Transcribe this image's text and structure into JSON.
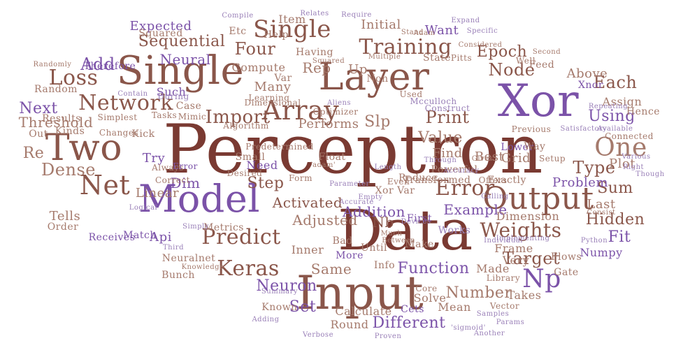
{
  "colors": {
    "maroon": "#7a3a32",
    "brown": "#8a564a",
    "rose": "#a57a6c",
    "purple": "#7b52a8",
    "lavender": "#9a80b8",
    "background": "#ffffff"
  },
  "words": [
    {
      "text": "Perceptron",
      "color": "maroon"
    },
    {
      "text": "Data",
      "color": "maroon"
    },
    {
      "text": "Input",
      "color": "brown"
    },
    {
      "text": "Single",
      "color": "brown"
    },
    {
      "text": "Layer",
      "color": "brown"
    },
    {
      "text": "Xor",
      "color": "purple"
    },
    {
      "text": "Model",
      "color": "purple"
    },
    {
      "text": "Output",
      "color": "brown"
    },
    {
      "text": "Two",
      "color": "brown"
    },
    {
      "text": "One",
      "color": "rose"
    },
    {
      "text": "Array",
      "color": "brown"
    },
    {
      "text": "Network",
      "color": "brown"
    },
    {
      "text": "Net",
      "color": "brown"
    },
    {
      "text": "Error",
      "color": "brown"
    },
    {
      "text": "Weights",
      "color": "brown"
    },
    {
      "text": "Predict",
      "color": "brown"
    },
    {
      "text": "Keras",
      "color": "brown"
    },
    {
      "text": "Np",
      "color": "purple"
    },
    {
      "text": "Single",
      "color": "brown"
    },
    {
      "text": "Training",
      "color": "brown"
    },
    {
      "text": "Loss",
      "color": "brown"
    },
    {
      "text": "Node",
      "color": "brown"
    },
    {
      "text": "Neuron",
      "color": "purple"
    },
    {
      "text": "Function",
      "color": "purple"
    },
    {
      "text": "Target",
      "color": "brown"
    },
    {
      "text": "Import",
      "color": "brown"
    },
    {
      "text": "Dense",
      "color": "rose"
    },
    {
      "text": "Print",
      "color": "brown"
    },
    {
      "text": "Value",
      "color": "rose"
    },
    {
      "text": "Slp",
      "color": "rose"
    },
    {
      "text": "Epoch",
      "color": "brown"
    },
    {
      "text": "Four",
      "color": "brown"
    },
    {
      "text": "Sequential",
      "color": "brown"
    },
    {
      "text": "Neural",
      "color": "purple"
    },
    {
      "text": "Add",
      "color": "purple"
    },
    {
      "text": "Each",
      "color": "brown"
    },
    {
      "text": "Using",
      "color": "purple"
    },
    {
      "text": "Type",
      "color": "brown"
    },
    {
      "text": "Sum",
      "color": "brown"
    },
    {
      "text": "Hidden",
      "color": "brown"
    },
    {
      "text": "Fit",
      "color": "purple"
    },
    {
      "text": "Api",
      "color": "purple"
    },
    {
      "text": "Set",
      "color": "purple"
    },
    {
      "text": "Different",
      "color": "purple"
    },
    {
      "text": "Number",
      "color": "rose"
    },
    {
      "text": "Activated",
      "color": "brown"
    },
    {
      "text": "Adjusted",
      "color": "rose"
    },
    {
      "text": "Example",
      "color": "purple"
    },
    {
      "text": "Problem",
      "color": "purple"
    },
    {
      "text": "Dimension",
      "color": "rose"
    },
    {
      "text": "Step",
      "color": "brown"
    },
    {
      "text": "Dim",
      "color": "purple"
    },
    {
      "text": "Linear",
      "color": "rose"
    },
    {
      "text": "Try",
      "color": "purple"
    },
    {
      "text": "Find",
      "color": "rose"
    },
    {
      "text": "Best",
      "color": "rose"
    },
    {
      "text": "Grid",
      "color": "rose"
    },
    {
      "text": "Plot",
      "color": "rose"
    },
    {
      "text": "Last",
      "color": "rose"
    },
    {
      "text": "Next",
      "color": "purple"
    },
    {
      "text": "Threshold",
      "color": "rose"
    },
    {
      "text": "Re",
      "color": "rose"
    },
    {
      "text": "Tells",
      "color": "rose"
    },
    {
      "text": "Expected",
      "color": "purple"
    },
    {
      "text": "Squared",
      "color": "rose"
    },
    {
      "text": "Initial",
      "color": "rose"
    },
    {
      "text": "Want",
      "color": "purple"
    },
    {
      "text": "Rep",
      "color": "rose"
    },
    {
      "text": "Up",
      "color": "rose"
    },
    {
      "text": "Many",
      "color": "rose"
    },
    {
      "text": "Performs",
      "color": "rose"
    },
    {
      "text": "Xnor",
      "color": "purple"
    },
    {
      "text": "Above",
      "color": "rose"
    },
    {
      "text": "Assign",
      "color": "rose"
    },
    {
      "text": "Hence",
      "color": "rose"
    },
    {
      "text": "Same",
      "color": "rose"
    },
    {
      "text": "Round",
      "color": "rose"
    },
    {
      "text": "Calculate",
      "color": "rose"
    },
    {
      "text": "Mean",
      "color": "rose"
    },
    {
      "text": "Solve",
      "color": "rose"
    },
    {
      "text": "Made",
      "color": "rose"
    },
    {
      "text": "Takes",
      "color": "rose"
    },
    {
      "text": "Numpy",
      "color": "purple"
    },
    {
      "text": "Frame",
      "color": "rose"
    },
    {
      "text": "Inner",
      "color": "rose"
    },
    {
      "text": "Nb",
      "color": "brown"
    },
    {
      "text": "Addition",
      "color": "purple"
    },
    {
      "text": "Item",
      "color": "rose"
    },
    {
      "text": "Compute",
      "color": "rose"
    },
    {
      "text": "Such",
      "color": "purple"
    },
    {
      "text": "Case",
      "color": "rose"
    },
    {
      "text": "Float",
      "color": "rose"
    },
    {
      "text": "Var",
      "color": "rose"
    },
    {
      "text": "Non",
      "color": "rose"
    },
    {
      "text": "Small",
      "color": "rose"
    },
    {
      "text": "Need",
      "color": "purple"
    },
    {
      "text": "Kick",
      "color": "rose"
    },
    {
      "text": "Metrics",
      "color": "rose"
    },
    {
      "text": "Neuralnet",
      "color": "rose"
    },
    {
      "text": "Known",
      "color": "rose"
    },
    {
      "text": "Bunch",
      "color": "rose"
    },
    {
      "text": "Match",
      "color": "purple"
    },
    {
      "text": "Receives",
      "color": "purple"
    },
    {
      "text": "Order",
      "color": "rose"
    },
    {
      "text": "Random",
      "color": "rose"
    },
    {
      "text": "Results",
      "color": "rose"
    },
    {
      "text": "Out",
      "color": "rose"
    },
    {
      "text": "Kinds",
      "color": "rose"
    },
    {
      "text": "Therefore",
      "color": "purple"
    },
    {
      "text": "Etc",
      "color": "rose"
    },
    {
      "text": "Help",
      "color": "rose"
    },
    {
      "text": "Having",
      "color": "rose"
    },
    {
      "text": "Relates",
      "color": "lavender"
    },
    {
      "text": "Stand",
      "color": "rose"
    },
    {
      "text": "Adam",
      "color": "rose"
    },
    {
      "text": "Second",
      "color": "rose"
    },
    {
      "text": "Feed",
      "color": "rose"
    },
    {
      "text": "Well",
      "color": "rose"
    },
    {
      "text": "State",
      "color": "rose"
    },
    {
      "text": "Pitts",
      "color": "rose"
    },
    {
      "text": "Multiple",
      "color": "rose"
    },
    {
      "text": "Considered",
      "color": "rose"
    },
    {
      "text": "Expand",
      "color": "lavender"
    },
    {
      "text": "Specific",
      "color": "lavender"
    },
    {
      "text": "Compile",
      "color": "lavender"
    },
    {
      "text": "Connected",
      "color": "rose"
    },
    {
      "text": "Previous",
      "color": "rose"
    },
    {
      "text": "Satisfactory",
      "color": "lavender"
    },
    {
      "text": "Exactly",
      "color": "rose"
    },
    {
      "text": "Lower",
      "color": "purple"
    },
    {
      "text": "Way",
      "color": "rose"
    },
    {
      "text": "Setup",
      "color": "rose"
    },
    {
      "text": "Offers",
      "color": "rose"
    },
    {
      "text": "Core",
      "color": "rose"
    },
    {
      "text": "Library",
      "color": "rose"
    },
    {
      "text": "Gate",
      "color": "rose"
    },
    {
      "text": "Vector",
      "color": "rose"
    },
    {
      "text": "Cets",
      "color": "purple"
    },
    {
      "text": "Very",
      "color": "rose"
    },
    {
      "text": "Info",
      "color": "rose"
    },
    {
      "text": "Bad",
      "color": "rose"
    },
    {
      "text": "More",
      "color": "purple"
    },
    {
      "text": "Until",
      "color": "rose"
    },
    {
      "text": "Make",
      "color": "rose"
    },
    {
      "text": "Works",
      "color": "lavender"
    },
    {
      "text": "Python",
      "color": "lavender"
    },
    {
      "text": "Consist",
      "color": "rose"
    },
    {
      "text": "Flows",
      "color": "rose"
    },
    {
      "text": "Algorithm",
      "color": "rose"
    },
    {
      "text": "Squared",
      "color": "rose"
    },
    {
      "text": "Simplest",
      "color": "rose"
    },
    {
      "text": "Optimizer",
      "color": "rose"
    },
    {
      "text": "Changes",
      "color": "rose"
    },
    {
      "text": "Predetermined",
      "color": "rose"
    },
    {
      "text": "Dimensional",
      "color": "rose"
    },
    {
      "text": "Learning",
      "color": "rose"
    },
    {
      "text": "Tasks",
      "color": "rose"
    },
    {
      "text": "Mimic",
      "color": "rose"
    },
    {
      "text": "Desired",
      "color": "rose"
    },
    {
      "text": "Form",
      "color": "rose"
    },
    {
      "text": "Reduce",
      "color": "rose"
    },
    {
      "text": "Xor Var",
      "color": "rose"
    },
    {
      "text": "Even",
      "color": "rose"
    },
    {
      "text": "Transformed",
      "color": "rose"
    },
    {
      "text": "Powerful",
      "color": "rose"
    },
    {
      "text": "'adam'",
      "color": "rose"
    },
    {
      "text": "Always",
      "color": "rose"
    },
    {
      "text": "Correct",
      "color": "rose"
    },
    {
      "text": "Error",
      "color": "purple"
    },
    {
      "text": "Knowledge",
      "color": "rose"
    },
    {
      "text": "Simply",
      "color": "lavender"
    },
    {
      "text": "During",
      "color": "lavender"
    },
    {
      "text": "Randomly",
      "color": "rose"
    },
    {
      "text": "Contain",
      "color": "lavender"
    },
    {
      "text": "Used",
      "color": "rose"
    },
    {
      "text": "Mcculloch",
      "color": "lavender"
    },
    {
      "text": "Construct",
      "color": "lavender"
    },
    {
      "text": "Repeating",
      "color": "lavender"
    },
    {
      "text": "Available",
      "color": "lavender"
    },
    {
      "text": "Various",
      "color": "lavender"
    },
    {
      "text": "Though",
      "color": "lavender"
    },
    {
      "text": "Right",
      "color": "lavender"
    },
    {
      "text": "Accuracy",
      "color": "lavender"
    },
    {
      "text": "Calling",
      "color": "lavender"
    },
    {
      "text": "Implementing",
      "color": "lavender"
    },
    {
      "text": "Individual",
      "color": "lavender"
    },
    {
      "text": "Between",
      "color": "rose"
    },
    {
      "text": "Empty",
      "color": "lavender"
    },
    {
      "text": "Devices",
      "color": "lavender"
    },
    {
      "text": "First",
      "color": "purple"
    },
    {
      "text": "Much",
      "color": "rose"
    },
    {
      "text": "Accurate",
      "color": "lavender"
    },
    {
      "text": "Parameter",
      "color": "lavender"
    },
    {
      "text": "Length",
      "color": "lavender"
    },
    {
      "text": "Logical",
      "color": "lavender"
    },
    {
      "text": "Third",
      "color": "lavender"
    },
    {
      "text": "Samples",
      "color": "lavender"
    },
    {
      "text": "Params",
      "color": "lavender"
    },
    {
      "text": "'sigmoid'",
      "color": "lavender"
    },
    {
      "text": "Another",
      "color": "lavender"
    },
    {
      "text": "Proven",
      "color": "lavender"
    },
    {
      "text": "Verbose",
      "color": "lavender"
    },
    {
      "text": "Summary",
      "color": "lavender"
    },
    {
      "text": "Adding",
      "color": "lavender"
    },
    {
      "text": "Gives",
      "color": "rose"
    },
    {
      "text": "Aliens",
      "color": "lavender"
    },
    {
      "text": "Through",
      "color": "lavender"
    },
    {
      "text": "Require",
      "color": "lavender"
    },
    {
      "text": "Binary",
      "color": "lavender"
    },
    {
      "text": "Process",
      "color": "lavender"
    }
  ]
}
